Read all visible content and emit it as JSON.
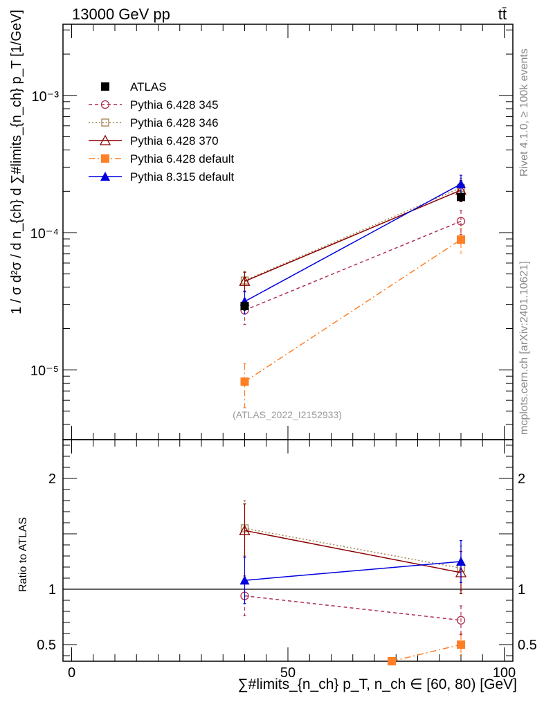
{
  "header": {
    "energy_label": "13000 GeV pp",
    "process_label": "tt̄"
  },
  "side_labels": {
    "rivet": "Rivet 4.1.0, ≥ 100k events",
    "source": "mcplots.cern.ch [arXiv:2401.10621]"
  },
  "analysis_label": "(ATLAS_2022_I2152933)",
  "colors": {
    "atlas": "#000000",
    "p345": "#b03050",
    "p346": "#a0804a",
    "p370": "#8b0000",
    "p6def": "#ff7f27",
    "p8def": "#0000dd"
  },
  "chart_data": [
    {
      "type": "line",
      "name": "main",
      "ylabel": "1 / σ d²σ / d n_{ch} d ∑#limits_{n_ch} p_T [1/GeV]",
      "xlim": [
        -2,
        102
      ],
      "ylim": [
        3.1e-06,
        0.0033
      ],
      "yscale": "log",
      "yticklabels": [
        {
          "value": 1e-05,
          "label": "10⁻⁵"
        },
        {
          "value": 0.0001,
          "label": "10⁻⁴"
        },
        {
          "value": 0.001,
          "label": "10⁻³"
        }
      ],
      "legend_position": "top-left",
      "series": [
        {
          "key": "atlas",
          "name": "ATLAS",
          "style": "data",
          "marker": "square-filled",
          "x": [
            40,
            90
          ],
          "y": [
            2.92e-05,
            0.000182
          ],
          "err": [
            2e-06,
            1.2e-05
          ]
        },
        {
          "key": "p345",
          "name": "Pythia 6.428 345",
          "style": "dashed",
          "marker": "circle-open",
          "x": [
            40,
            90
          ],
          "y": [
            2.72e-05,
            0.000121
          ],
          "err": [
            5.8e-06,
            2.4e-05
          ]
        },
        {
          "key": "p346",
          "name": "Pythia 6.428 346",
          "style": "dotted",
          "marker": "square-open",
          "x": [
            40,
            90
          ],
          "y": [
            4.48e-05,
            0.000212
          ],
          "err": [
            7.5e-06,
            3.7e-05
          ]
        },
        {
          "key": "p370",
          "name": "Pythia 6.428 370",
          "style": "solid",
          "marker": "triangle-open",
          "x": [
            40,
            90
          ],
          "y": [
            4.42e-05,
            0.000204
          ],
          "err": [
            7.2e-06,
            3.6e-05
          ]
        },
        {
          "key": "p6def",
          "name": "Pythia 6.428 default",
          "style": "dashdot",
          "marker": "square-filled",
          "x": [
            40,
            90
          ],
          "y": [
            8.2e-06,
            8.9e-05
          ],
          "err": [
            2.9e-06,
            1.8e-05
          ]
        },
        {
          "key": "p8def",
          "name": "Pythia 8.315 default",
          "style": "solid",
          "marker": "triangle-filled",
          "x": [
            40,
            90
          ],
          "y": [
            3.15e-05,
            0.000226
          ],
          "err": [
            6e-06,
            3.6e-05
          ]
        }
      ]
    },
    {
      "type": "line",
      "name": "ratio",
      "title": "",
      "xlabel": "∑#limits_{n_ch} p_T, n_ch ∈ [60, 80) [GeV]",
      "ylabel": "Ratio to ATLAS",
      "xlim": [
        -2,
        102
      ],
      "ylim": [
        0.35,
        2.35
      ],
      "xticklabels": [
        {
          "value": 0,
          "label": "0"
        },
        {
          "value": 50,
          "label": "50"
        },
        {
          "value": 100,
          "label": "100"
        }
      ],
      "yticklabels": [
        {
          "value": 0.5,
          "label": "0.5"
        },
        {
          "value": 1,
          "label": "1"
        },
        {
          "value": 2,
          "label": "2"
        }
      ],
      "series": [
        {
          "key": "p345",
          "name": "Pythia 6.428 345",
          "style": "dashed",
          "marker": "circle-open",
          "x": [
            40,
            90
          ],
          "y": [
            0.94,
            0.72
          ],
          "err": [
            0.18,
            0.13
          ]
        },
        {
          "key": "p346",
          "name": "Pythia 6.428 346",
          "style": "dotted",
          "marker": "square-open",
          "x": [
            40,
            90
          ],
          "y": [
            1.55,
            1.19
          ],
          "err": [
            0.25,
            0.2
          ]
        },
        {
          "key": "p370",
          "name": "Pythia 6.428 370",
          "style": "solid",
          "marker": "triangle-open",
          "x": [
            40,
            90
          ],
          "y": [
            1.53,
            1.15
          ],
          "err": [
            0.24,
            0.19
          ]
        },
        {
          "key": "p6def",
          "name": "Pythia 6.428 default",
          "style": "dashdot",
          "marker": "square-filled",
          "x": [
            74,
            90
          ],
          "y": [
            0.35,
            0.5
          ],
          "err": [
            0,
            0.1
          ]
        },
        {
          "key": "p8def",
          "name": "Pythia 8.315 default",
          "style": "solid",
          "marker": "triangle-filled",
          "x": [
            40,
            90
          ],
          "y": [
            1.08,
            1.25
          ],
          "err": [
            0.21,
            0.19
          ]
        }
      ]
    }
  ]
}
